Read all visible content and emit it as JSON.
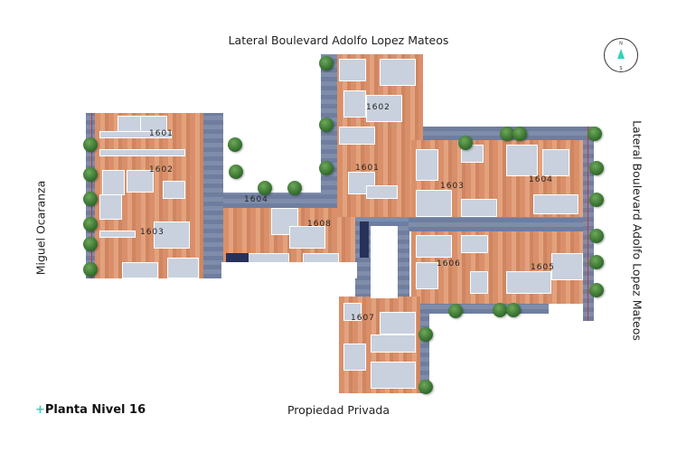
{
  "title": {
    "prefix": "+",
    "text": "Planta Nivel 16",
    "accent_color": "#2fd4b5"
  },
  "streets": {
    "top": "Lateral Boulevard Adolfo Lopez Mateos",
    "right": "Lateral Boulevard Adolfo Lopez Mateos",
    "left": "Miguel Ocaranza",
    "bottom": "Propiedad Privada"
  },
  "compass": {
    "north": "N",
    "south": "S",
    "icon": "compass-icon",
    "arrow_color": "#2fd4b5"
  },
  "units": [
    {
      "id": "unit-1601-west",
      "label": "1601"
    },
    {
      "id": "unit-1602-west",
      "label": "1602"
    },
    {
      "id": "unit-1603-west",
      "label": "1603"
    },
    {
      "id": "unit-1604-west",
      "label": "1604"
    },
    {
      "id": "unit-1608",
      "label": "1608"
    },
    {
      "id": "unit-1602-north",
      "label": "1602"
    },
    {
      "id": "unit-1601-center",
      "label": "1601"
    },
    {
      "id": "unit-1603-east",
      "label": "1603"
    },
    {
      "id": "unit-1604-east",
      "label": "1604"
    },
    {
      "id": "unit-1606",
      "label": "1606"
    },
    {
      "id": "unit-1605",
      "label": "1605"
    },
    {
      "id": "unit-1607",
      "label": "1607"
    }
  ],
  "colors": {
    "floor": "#d9906a",
    "corridor": "#6f7e9e",
    "trees": "#2f6a2a"
  }
}
